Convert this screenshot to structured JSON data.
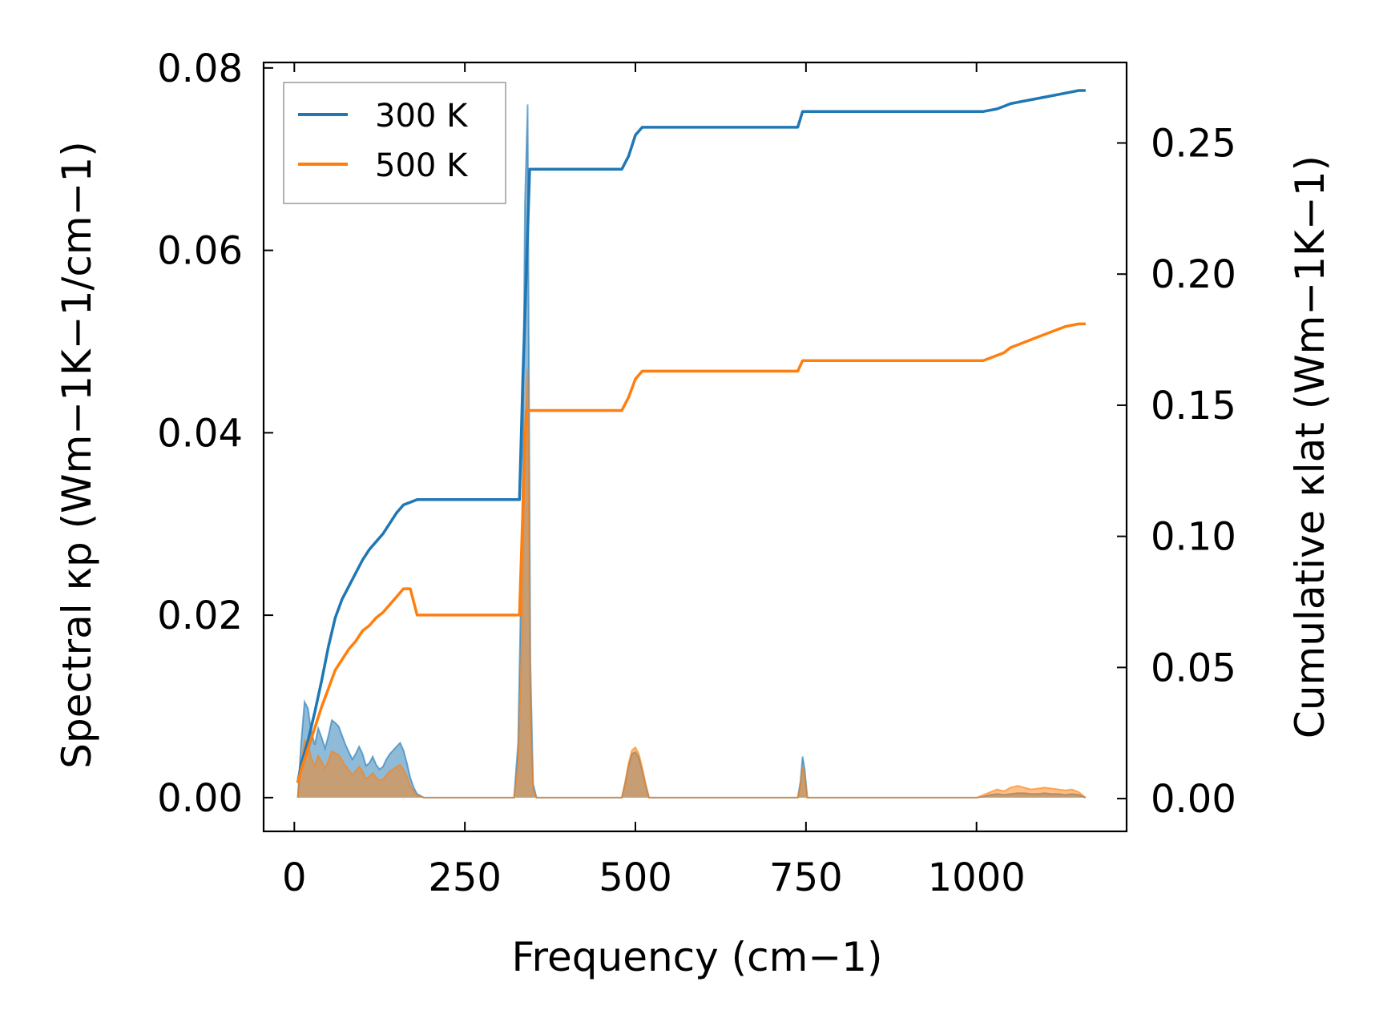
{
  "chart_data": {
    "type": "line",
    "xlabel": "Frequency (cm−1)",
    "ylabel_left": "Spectral κp (Wm−1K−1/cm−1)",
    "ylabel_right": "Cumulative κlat (Wm−1K−1)",
    "xlim": [
      -45,
      1220
    ],
    "ylim_left": [
      -0.0037,
      0.0806
    ],
    "ylim_right": [
      -0.0125,
      0.2807
    ],
    "x_ticks": [
      0,
      250,
      500,
      750,
      1000
    ],
    "y_ticks_left": [
      "0.00",
      "0.02",
      "0.04",
      "0.06",
      "0.08"
    ],
    "y_ticks_right": [
      "0.00",
      "0.05",
      "0.10",
      "0.15",
      "0.20",
      "0.25"
    ],
    "legend": {
      "position": "top-left",
      "entries": [
        "300 K",
        "500 K"
      ]
    },
    "colors": {
      "300 K": "#1f77b4",
      "500 K": "#ff7f0e"
    },
    "series": [
      {
        "name": "300 K",
        "color": "#1f77b4",
        "spectral": {
          "x": [
            5,
            10,
            15,
            20,
            25,
            30,
            35,
            40,
            45,
            50,
            55,
            60,
            65,
            70,
            75,
            80,
            85,
            90,
            95,
            100,
            105,
            110,
            115,
            120,
            125,
            130,
            135,
            140,
            145,
            150,
            155,
            160,
            165,
            170,
            175,
            180,
            190,
            322,
            328,
            334,
            338,
            342,
            346,
            350,
            355,
            360,
            480,
            485,
            490,
            495,
            500,
            505,
            510,
            515,
            520,
            738,
            742,
            745,
            748,
            752,
            1000,
            1010,
            1020,
            1030,
            1040,
            1050,
            1060,
            1070,
            1080,
            1090,
            1100,
            1110,
            1120,
            1130,
            1140,
            1150,
            1160
          ],
          "y": [
            0.0,
            0.006,
            0.0105,
            0.0098,
            0.0072,
            0.0058,
            0.0076,
            0.0066,
            0.0054,
            0.0068,
            0.0085,
            0.0082,
            0.0078,
            0.0068,
            0.0058,
            0.005,
            0.0042,
            0.0048,
            0.0056,
            0.0048,
            0.0035,
            0.0038,
            0.0045,
            0.0036,
            0.0031,
            0.0034,
            0.0042,
            0.0048,
            0.0052,
            0.0056,
            0.006,
            0.0052,
            0.0038,
            0.0022,
            0.0011,
            0.0004,
            0.0,
            0.0,
            0.006,
            0.03,
            0.065,
            0.076,
            0.015,
            0.0015,
            0.0,
            0.0,
            0.0,
            0.0016,
            0.0035,
            0.0048,
            0.005,
            0.0044,
            0.003,
            0.0014,
            0.0,
            0.0,
            0.0018,
            0.0045,
            0.0032,
            0.0,
            0.0,
            0.0001,
            0.0003,
            0.0004,
            0.0003,
            0.0004,
            0.0005,
            0.0005,
            0.0004,
            0.0004,
            0.0005,
            0.0004,
            0.0004,
            0.0003,
            0.0004,
            0.0003,
            0.0
          ]
        },
        "cumulative": {
          "x": [
            5,
            10,
            20,
            30,
            40,
            50,
            60,
            70,
            80,
            90,
            100,
            110,
            120,
            130,
            140,
            150,
            160,
            170,
            180,
            190,
            322,
            330,
            335,
            340,
            345,
            350,
            480,
            490,
            500,
            510,
            520,
            738,
            745,
            750,
            1000,
            1010,
            1030,
            1040,
            1050,
            1070,
            1090,
            1110,
            1130,
            1150,
            1160
          ],
          "y": [
            0.006,
            0.013,
            0.022,
            0.033,
            0.045,
            0.058,
            0.069,
            0.076,
            0.081,
            0.086,
            0.091,
            0.095,
            0.098,
            0.101,
            0.105,
            0.109,
            0.112,
            0.113,
            0.114,
            0.114,
            0.114,
            0.114,
            0.16,
            0.2,
            0.24,
            0.24,
            0.24,
            0.245,
            0.253,
            0.256,
            0.256,
            0.256,
            0.262,
            0.262,
            0.262,
            0.262,
            0.263,
            0.264,
            0.265,
            0.266,
            0.267,
            0.268,
            0.269,
            0.27,
            0.27
          ]
        }
      },
      {
        "name": "500 K",
        "color": "#ff7f0e",
        "spectral": {
          "x": [
            5,
            10,
            15,
            20,
            25,
            30,
            35,
            40,
            45,
            50,
            55,
            60,
            65,
            70,
            75,
            80,
            85,
            90,
            95,
            100,
            105,
            110,
            115,
            120,
            125,
            130,
            135,
            140,
            145,
            150,
            155,
            160,
            165,
            170,
            175,
            180,
            190,
            322,
            328,
            334,
            338,
            342,
            346,
            350,
            355,
            360,
            480,
            485,
            490,
            495,
            500,
            505,
            510,
            515,
            520,
            738,
            742,
            745,
            748,
            752,
            1000,
            1010,
            1020,
            1030,
            1040,
            1050,
            1060,
            1070,
            1080,
            1090,
            1100,
            1110,
            1120,
            1130,
            1140,
            1150,
            1160
          ],
          "y": [
            0.0,
            0.0036,
            0.0063,
            0.0059,
            0.0043,
            0.0035,
            0.0046,
            0.004,
            0.0032,
            0.0041,
            0.0051,
            0.0049,
            0.0047,
            0.0041,
            0.0035,
            0.003,
            0.0025,
            0.0029,
            0.0034,
            0.0029,
            0.0021,
            0.0023,
            0.0027,
            0.0022,
            0.0019,
            0.002,
            0.0025,
            0.0029,
            0.0031,
            0.0034,
            0.0036,
            0.0031,
            0.0023,
            0.0013,
            0.0007,
            0.0002,
            0.0,
            0.0,
            0.0037,
            0.019,
            0.04,
            0.047,
            0.009,
            0.0009,
            0.0,
            0.0,
            0.0,
            0.0017,
            0.0038,
            0.0052,
            0.0055,
            0.0048,
            0.0033,
            0.0015,
            0.0,
            0.0,
            0.0013,
            0.0034,
            0.0024,
            0.0,
            0.0,
            0.0003,
            0.0006,
            0.0009,
            0.0007,
            0.0011,
            0.0013,
            0.0011,
            0.0009,
            0.001,
            0.0011,
            0.001,
            0.0009,
            0.0008,
            0.0009,
            0.0006,
            0.0
          ]
        },
        "cumulative": {
          "x": [
            5,
            10,
            20,
            30,
            40,
            50,
            60,
            70,
            80,
            90,
            100,
            110,
            120,
            130,
            140,
            150,
            160,
            170,
            180,
            190,
            322,
            330,
            335,
            340,
            345,
            350,
            480,
            490,
            500,
            510,
            520,
            738,
            745,
            750,
            1000,
            1010,
            1030,
            1040,
            1050,
            1070,
            1090,
            1110,
            1130,
            1150,
            1160
          ],
          "y": [
            0.006,
            0.011,
            0.019,
            0.027,
            0.035,
            0.042,
            0.049,
            0.053,
            0.057,
            0.06,
            0.064,
            0.066,
            0.069,
            0.071,
            0.074,
            0.077,
            0.08,
            0.08,
            0.07,
            0.07,
            0.07,
            0.07,
            0.11,
            0.148,
            0.148,
            0.148,
            0.148,
            0.153,
            0.16,
            0.163,
            0.163,
            0.163,
            0.167,
            0.167,
            0.167,
            0.167,
            0.169,
            0.17,
            0.172,
            0.174,
            0.176,
            0.178,
            0.18,
            0.181,
            0.181
          ]
        }
      }
    ]
  }
}
